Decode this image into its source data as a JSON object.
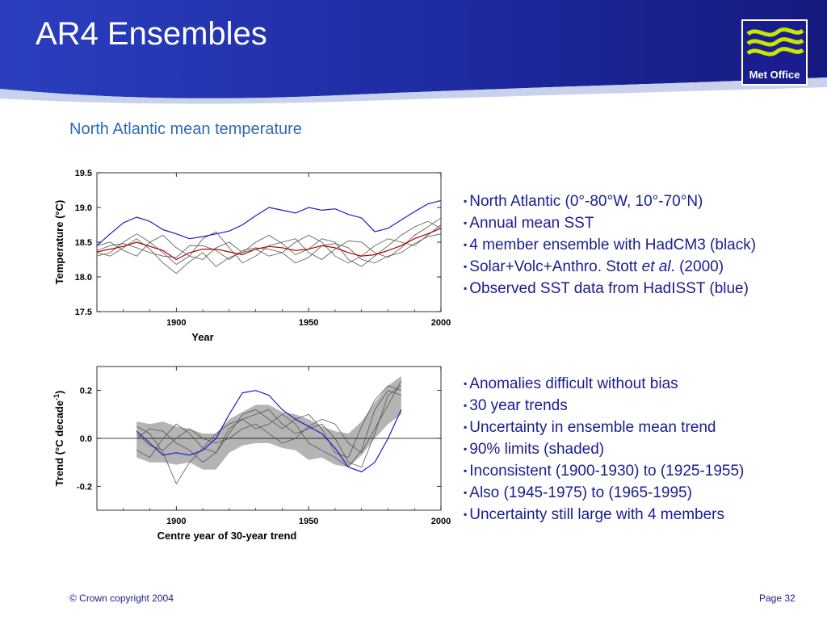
{
  "header": {
    "title": "AR4 Ensembles",
    "logo_text": "Met Office",
    "colors": {
      "dark_blue": "#1a1d8f",
      "band_blue": "#2b4fc4",
      "band_light": "#cfd8ee"
    }
  },
  "subtitle": "North Atlantic mean temperature",
  "chart_data": [
    {
      "type": "line",
      "ylabel": "Temperature (°C)",
      "xlabel": "Year",
      "xlim": [
        1870,
        2000
      ],
      "ylim": [
        17.5,
        19.5
      ],
      "xticks": [
        1900,
        1950,
        2000
      ],
      "yticks": [
        "17.5",
        "18.0",
        "18.5",
        "19.0",
        "19.5"
      ],
      "series": [
        {
          "color": "#1c1cc8",
          "x": [
            1870,
            1875,
            1880,
            1885,
            1890,
            1895,
            1900,
            1905,
            1910,
            1915,
            1920,
            1925,
            1930,
            1935,
            1940,
            1945,
            1950,
            1955,
            1960,
            1965,
            1970,
            1975,
            1980,
            1985,
            1990,
            1995,
            2000
          ],
          "y": [
            18.45,
            18.62,
            18.78,
            18.86,
            18.8,
            18.68,
            18.62,
            18.55,
            18.58,
            18.62,
            18.66,
            18.75,
            18.88,
            19.0,
            18.96,
            18.92,
            19.0,
            18.96,
            18.98,
            18.9,
            18.85,
            18.65,
            18.7,
            18.82,
            18.94,
            19.05,
            19.1
          ]
        },
        {
          "color": "#b00000",
          "x": [
            1870,
            1875,
            1880,
            1885,
            1890,
            1895,
            1900,
            1905,
            1910,
            1915,
            1920,
            1925,
            1930,
            1935,
            1940,
            1945,
            1950,
            1955,
            1960,
            1965,
            1970,
            1975,
            1980,
            1985,
            1990,
            1995,
            2000
          ],
          "y": [
            18.36,
            18.4,
            18.44,
            18.5,
            18.44,
            18.38,
            18.25,
            18.35,
            18.4,
            18.4,
            18.36,
            18.32,
            18.4,
            18.44,
            18.42,
            18.38,
            18.4,
            18.45,
            18.42,
            18.35,
            18.3,
            18.32,
            18.38,
            18.45,
            18.55,
            18.62,
            18.7
          ]
        },
        {
          "color": "#555555",
          "x": [
            1870,
            1875,
            1880,
            1885,
            1890,
            1895,
            1900,
            1905,
            1910,
            1915,
            1920,
            1925,
            1930,
            1935,
            1940,
            1945,
            1950,
            1955,
            1960,
            1965,
            1970,
            1975,
            1980,
            1985,
            1990,
            1995,
            2000
          ],
          "y": [
            18.35,
            18.3,
            18.42,
            18.55,
            18.4,
            18.2,
            18.05,
            18.22,
            18.35,
            18.15,
            18.28,
            18.35,
            18.5,
            18.6,
            18.48,
            18.32,
            18.4,
            18.55,
            18.5,
            18.25,
            18.15,
            18.3,
            18.45,
            18.6,
            18.72,
            18.8,
            18.7
          ]
        },
        {
          "color": "#555555",
          "x": [
            1870,
            1875,
            1880,
            1885,
            1890,
            1895,
            1900,
            1905,
            1910,
            1915,
            1920,
            1925,
            1930,
            1935,
            1940,
            1945,
            1950,
            1955,
            1960,
            1965,
            1970,
            1975,
            1980,
            1985,
            1990,
            1995,
            2000
          ],
          "y": [
            18.45,
            18.5,
            18.38,
            18.3,
            18.5,
            18.6,
            18.42,
            18.3,
            18.55,
            18.65,
            18.42,
            18.2,
            18.3,
            18.45,
            18.5,
            18.55,
            18.35,
            18.25,
            18.4,
            18.52,
            18.5,
            18.35,
            18.28,
            18.42,
            18.6,
            18.72,
            18.85
          ]
        },
        {
          "color": "#555555",
          "x": [
            1870,
            1875,
            1880,
            1885,
            1890,
            1895,
            1900,
            1905,
            1910,
            1915,
            1920,
            1925,
            1930,
            1935,
            1940,
            1945,
            1950,
            1955,
            1960,
            1965,
            1970,
            1975,
            1980,
            1985,
            1990,
            1995,
            2000
          ],
          "y": [
            18.3,
            18.35,
            18.5,
            18.62,
            18.5,
            18.35,
            18.18,
            18.3,
            18.25,
            18.42,
            18.5,
            18.35,
            18.4,
            18.3,
            18.35,
            18.5,
            18.6,
            18.5,
            18.3,
            18.2,
            18.3,
            18.45,
            18.55,
            18.5,
            18.45,
            18.6,
            18.75
          ]
        },
        {
          "color": "#555555",
          "x": [
            1870,
            1875,
            1880,
            1885,
            1890,
            1895,
            1900,
            1905,
            1910,
            1915,
            1920,
            1925,
            1930,
            1935,
            1940,
            1945,
            1950,
            1955,
            1960,
            1965,
            1970,
            1975,
            1980,
            1985,
            1990,
            1995,
            2000
          ],
          "y": [
            18.38,
            18.45,
            18.48,
            18.42,
            18.35,
            18.3,
            18.28,
            18.45,
            18.45,
            18.38,
            18.25,
            18.38,
            18.42,
            18.4,
            18.35,
            18.2,
            18.28,
            18.45,
            18.48,
            18.42,
            18.25,
            18.2,
            18.3,
            18.35,
            18.48,
            18.58,
            18.62
          ]
        }
      ]
    },
    {
      "type": "line",
      "ylabel": "Trend (°C decade",
      "ylabel_sup": "-1",
      "ylabel_close": ")",
      "xlabel": "Centre year of 30-year trend",
      "xlim": [
        1870,
        2000
      ],
      "ylim": [
        -0.3,
        0.3
      ],
      "xticks": [
        1900,
        1950,
        2000
      ],
      "yticks": [
        "-0.2",
        "0.0",
        "0.2"
      ],
      "band": {
        "color": "#b4b4b4",
        "x": [
          1885,
          1890,
          1895,
          1900,
          1905,
          1910,
          1915,
          1920,
          1925,
          1930,
          1935,
          1940,
          1945,
          1950,
          1955,
          1960,
          1965,
          1970,
          1975,
          1980,
          1985
        ],
        "lower": [
          -0.08,
          -0.1,
          -0.1,
          -0.11,
          -0.1,
          -0.13,
          -0.13,
          -0.06,
          -0.03,
          -0.02,
          -0.02,
          -0.04,
          -0.05,
          -0.09,
          -0.08,
          -0.11,
          -0.12,
          -0.07,
          0.0,
          0.06,
          0.1
        ],
        "upper": [
          0.07,
          0.06,
          0.07,
          0.05,
          0.04,
          0.02,
          0.02,
          0.08,
          0.11,
          0.14,
          0.14,
          0.11,
          0.1,
          0.08,
          0.05,
          0.03,
          0.02,
          0.07,
          0.15,
          0.22,
          0.26
        ]
      },
      "series": [
        {
          "color": "#1c1cc8",
          "x": [
            1885,
            1890,
            1895,
            1900,
            1905,
            1910,
            1915,
            1920,
            1925,
            1930,
            1935,
            1940,
            1945,
            1950,
            1955,
            1960,
            1965,
            1970,
            1975,
            1980,
            1985
          ],
          "y": [
            0.03,
            -0.02,
            -0.07,
            -0.06,
            -0.07,
            -0.05,
            0.0,
            0.1,
            0.19,
            0.2,
            0.18,
            0.12,
            0.08,
            0.05,
            0.02,
            -0.04,
            -0.12,
            -0.14,
            -0.1,
            0.0,
            0.12
          ]
        },
        {
          "color": "#555555",
          "x": [
            1885,
            1890,
            1895,
            1900,
            1905,
            1910,
            1915,
            1920,
            1925,
            1930,
            1935,
            1940,
            1945,
            1950,
            1955,
            1960,
            1965,
            1970,
            1975,
            1980,
            1985
          ],
          "y": [
            0.05,
            0.02,
            -0.06,
            -0.19,
            -0.1,
            -0.04,
            0.02,
            0.06,
            0.08,
            0.04,
            0.06,
            0.1,
            0.06,
            -0.02,
            -0.05,
            -0.08,
            -0.12,
            -0.05,
            0.12,
            0.2,
            0.18
          ]
        },
        {
          "color": "#555555",
          "x": [
            1885,
            1890,
            1895,
            1900,
            1905,
            1910,
            1915,
            1920,
            1925,
            1930,
            1935,
            1940,
            1945,
            1950,
            1955,
            1960,
            1965,
            1970,
            1975,
            1980,
            1985
          ],
          "y": [
            -0.05,
            -0.08,
            0.0,
            0.06,
            0.02,
            -0.04,
            -0.06,
            0.02,
            0.1,
            0.12,
            0.08,
            0.04,
            0.08,
            0.1,
            0.04,
            -0.06,
            -0.08,
            0.05,
            0.16,
            0.22,
            0.2
          ]
        },
        {
          "color": "#555555",
          "x": [
            1885,
            1890,
            1895,
            1900,
            1905,
            1910,
            1915,
            1920,
            1925,
            1930,
            1935,
            1940,
            1945,
            1950,
            1955,
            1960,
            1965,
            1970,
            1975,
            1980,
            1985
          ],
          "y": [
            0.0,
            0.04,
            0.03,
            -0.02,
            -0.05,
            -0.1,
            -0.06,
            0.04,
            0.08,
            0.1,
            0.12,
            0.06,
            0.02,
            0.04,
            0.06,
            0.0,
            -0.1,
            -0.12,
            0.02,
            0.18,
            0.22
          ]
        },
        {
          "color": "#555555",
          "x": [
            1885,
            1890,
            1895,
            1900,
            1905,
            1910,
            1915,
            1920,
            1925,
            1930,
            1935,
            1940,
            1945,
            1950,
            1955,
            1960,
            1965,
            1970,
            1975,
            1980,
            1985
          ],
          "y": [
            0.02,
            -0.03,
            -0.05,
            0.0,
            0.04,
            0.0,
            -0.02,
            0.0,
            0.04,
            0.06,
            0.02,
            -0.02,
            0.0,
            0.05,
            0.08,
            0.06,
            -0.02,
            -0.06,
            0.04,
            0.14,
            0.24
          ]
        }
      ]
    }
  ],
  "bullets_top": [
    {
      "text": "North Atlantic (0°-80°W, 10°-70°N)"
    },
    {
      "text": "Annual mean SST"
    },
    {
      "text": "4 member ensemble with HadCM3 (black)"
    },
    {
      "text": "Solar+Volc+Anthro. Stott ",
      "italic": "et al",
      "after": ". (2000)"
    },
    {
      "text": "Observed SST data from HadISST (blue)"
    }
  ],
  "bullets_bottom": [
    {
      "text": "Anomalies difficult without bias"
    },
    {
      "text": "30 year trends"
    },
    {
      "text": "Uncertainty in ensemble mean trend"
    },
    {
      "text": "90% limits (shaded)"
    },
    {
      "text": "Inconsistent (1900-1930) to (1925-1955)"
    },
    {
      "text": "Also (1945-1975) to (1965-1995)"
    },
    {
      "text": "Uncertainty still large with 4 members"
    }
  ],
  "bullet_marker": "▪",
  "footer": {
    "copyright": "© Crown copyright 2004",
    "page": "Page 32"
  }
}
